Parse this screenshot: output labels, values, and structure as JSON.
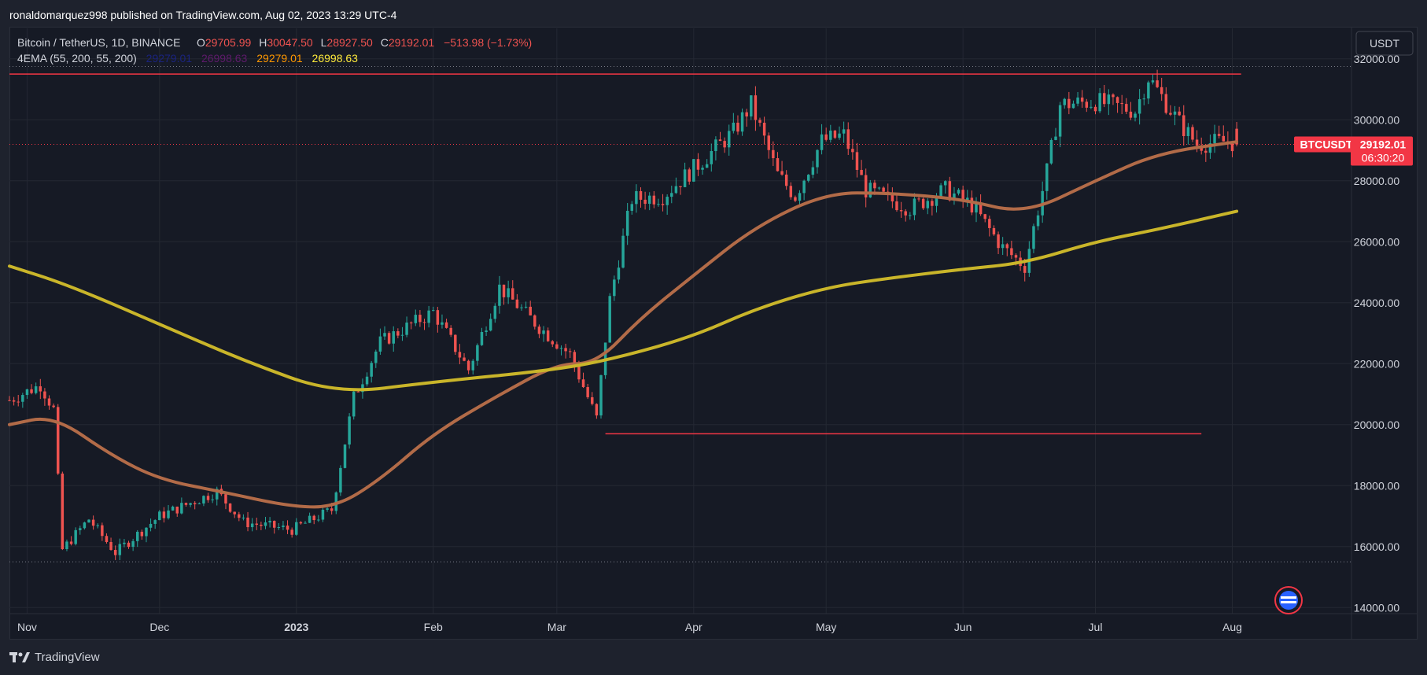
{
  "banner": {
    "publisher_text": "ronaldomarquez998 published on TradingView.com, Aug 02, 2023 13:29 UTC-4"
  },
  "header": {
    "symbol_title": "Bitcoin / TetherUS, 1D, BINANCE",
    "ohlc": {
      "o_label": "O",
      "o_value": "29705.99",
      "h_label": "H",
      "h_value": "30047.50",
      "l_label": "L",
      "l_value": "28927.50",
      "c_label": "C",
      "c_value": "29192.01",
      "change": "−513.98 (−1.73%)"
    },
    "indicator": {
      "name": "4EMA (55, 200, 55, 200)",
      "values": [
        "29279.01",
        "26998.63",
        "29279.01",
        "26998.63"
      ],
      "colors": [
        "#1a237e",
        "#5e1a6b",
        "#ff9800",
        "#ffeb3b"
      ]
    }
  },
  "currency_button": {
    "label": "USDT"
  },
  "price_badge": {
    "symbol": "BTCUSDT",
    "price": "29192.01",
    "countdown": "06:30:20"
  },
  "footer": {
    "brand": "TradingView"
  },
  "colors": {
    "up": "#26a69a",
    "down": "#ef5350",
    "ema55": "#b26b48",
    "ema200": "#c9b52a",
    "level_line": "#f23645",
    "background": "#161a25"
  },
  "chart_data": {
    "type": "candlestick",
    "symbol": "BTCUSDT",
    "timeframe": "1D",
    "x_range": [
      "2022-10-28",
      "2023-08-28"
    ],
    "ylim": [
      13800,
      33000
    ],
    "y_ticks": [
      14000,
      16000,
      18000,
      20000,
      22000,
      24000,
      26000,
      28000,
      30000,
      32000
    ],
    "y_tick_labels": [
      "14000.00",
      "16000.00",
      "18000.00",
      "20000.00",
      "22000.00",
      "24000.00",
      "26000.00",
      "28000.00",
      "30000.00",
      "32000.00"
    ],
    "x_ticks": [
      {
        "date": "2022-11-01",
        "label": "Nov"
      },
      {
        "date": "2022-12-01",
        "label": "Dec"
      },
      {
        "date": "2023-01-01",
        "label": "2023"
      },
      {
        "date": "2023-02-01",
        "label": "Feb"
      },
      {
        "date": "2023-03-01",
        "label": "Mar"
      },
      {
        "date": "2023-04-01",
        "label": "Apr"
      },
      {
        "date": "2023-05-01",
        "label": "May"
      },
      {
        "date": "2023-06-01",
        "label": "Jun"
      },
      {
        "date": "2023-07-01",
        "label": "Jul"
      },
      {
        "date": "2023-08-01",
        "label": "Aug"
      }
    ],
    "close_path": [
      [
        "2022-10-28",
        20800
      ],
      [
        "2022-11-04",
        21300
      ],
      [
        "2022-11-07",
        20500
      ],
      [
        "2022-11-09",
        15900
      ],
      [
        "2022-11-15",
        16900
      ],
      [
        "2022-11-21",
        15800
      ],
      [
        "2022-12-01",
        17000
      ],
      [
        "2022-12-14",
        17800
      ],
      [
        "2022-12-20",
        16800
      ],
      [
        "2022-12-31",
        16550
      ],
      [
        "2023-01-09",
        17200
      ],
      [
        "2023-01-14",
        20900
      ],
      [
        "2023-01-20",
        22700
      ],
      [
        "2023-02-01",
        23700
      ],
      [
        "2023-02-09",
        21800
      ],
      [
        "2023-02-16",
        24500
      ],
      [
        "2023-02-25",
        23200
      ],
      [
        "2023-03-04",
        22300
      ],
      [
        "2023-03-10",
        20200
      ],
      [
        "2023-03-13",
        24100
      ],
      [
        "2023-03-18",
        27400
      ],
      [
        "2023-03-25",
        27500
      ],
      [
        "2023-04-01",
        28400
      ],
      [
        "2023-04-10",
        29600
      ],
      [
        "2023-04-14",
        30500
      ],
      [
        "2023-04-20",
        28200
      ],
      [
        "2023-04-24",
        27500
      ],
      [
        "2023-04-30",
        29300
      ],
      [
        "2023-05-05",
        29500
      ],
      [
        "2023-05-10",
        27700
      ],
      [
        "2023-05-20",
        27100
      ],
      [
        "2023-05-28",
        27700
      ],
      [
        "2023-06-03",
        27200
      ],
      [
        "2023-06-10",
        25800
      ],
      [
        "2023-06-15",
        25200
      ],
      [
        "2023-06-20",
        28300
      ],
      [
        "2023-06-23",
        30500
      ],
      [
        "2023-07-01",
        30600
      ],
      [
        "2023-07-10",
        30300
      ],
      [
        "2023-07-13",
        31400
      ],
      [
        "2023-07-20",
        29900
      ],
      [
        "2023-07-24",
        29200
      ],
      [
        "2023-07-31",
        29300
      ],
      [
        "2023-08-02",
        29192
      ]
    ],
    "series": [
      {
        "name": "EMA 55",
        "values": [
          [
            "2022-10-28",
            20000
          ],
          [
            "2022-11-07",
            20300
          ],
          [
            "2022-11-20",
            19000
          ],
          [
            "2022-12-01",
            18200
          ],
          [
            "2022-12-15",
            17800
          ],
          [
            "2022-12-31",
            17300
          ],
          [
            "2023-01-10",
            17300
          ],
          [
            "2023-01-20",
            18200
          ],
          [
            "2023-02-01",
            19700
          ],
          [
            "2023-02-15",
            20900
          ],
          [
            "2023-03-01",
            22000
          ],
          [
            "2023-03-10",
            22000
          ],
          [
            "2023-03-20",
            23500
          ],
          [
            "2023-04-01",
            24900
          ],
          [
            "2023-04-15",
            26500
          ],
          [
            "2023-05-01",
            27600
          ],
          [
            "2023-05-15",
            27600
          ],
          [
            "2023-06-01",
            27400
          ],
          [
            "2023-06-15",
            26900
          ],
          [
            "2023-07-01",
            28000
          ],
          [
            "2023-07-15",
            28900
          ],
          [
            "2023-08-02",
            29279
          ]
        ]
      },
      {
        "name": "EMA 200",
        "values": [
          [
            "2022-10-28",
            25200
          ],
          [
            "2022-11-10",
            24600
          ],
          [
            "2022-12-01",
            23300
          ],
          [
            "2022-12-20",
            22100
          ],
          [
            "2023-01-10",
            21000
          ],
          [
            "2023-02-01",
            21400
          ],
          [
            "2023-03-01",
            21800
          ],
          [
            "2023-03-15",
            22200
          ],
          [
            "2023-04-01",
            22900
          ],
          [
            "2023-04-15",
            23800
          ],
          [
            "2023-05-01",
            24500
          ],
          [
            "2023-05-15",
            24800
          ],
          [
            "2023-06-01",
            25100
          ],
          [
            "2023-06-15",
            25300
          ],
          [
            "2023-07-01",
            26000
          ],
          [
            "2023-07-15",
            26400
          ],
          [
            "2023-08-02",
            26998
          ]
        ]
      }
    ],
    "horizontal_levels": [
      {
        "price": 31500,
        "from": "2022-10-28",
        "to": "2023-08-03"
      },
      {
        "price": 19700,
        "from": "2023-03-12",
        "to": "2023-07-25"
      }
    ],
    "dotted_levels": [
      31750,
      15500
    ],
    "last_price": 29192.01
  }
}
